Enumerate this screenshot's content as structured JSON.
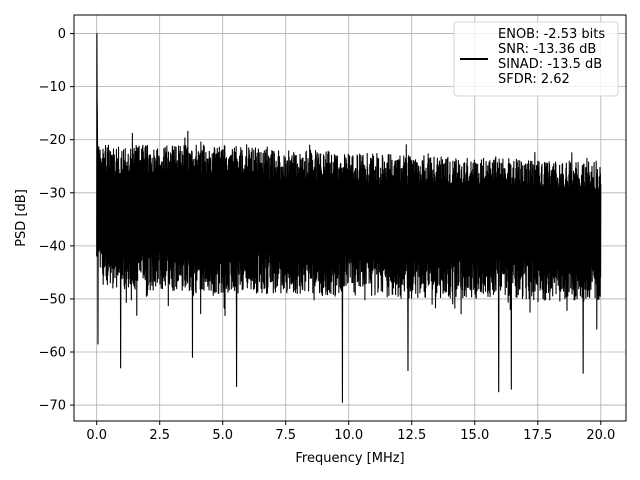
{
  "chart_data": {
    "type": "line",
    "title": "",
    "xlabel": "Frequency [MHz]",
    "ylabel": "PSD [dB]",
    "xlim": [
      -0.9,
      21.0
    ],
    "ylim": [
      -73.0,
      3.5
    ],
    "xticks": [
      0.0,
      2.5,
      5.0,
      7.5,
      10.0,
      12.5,
      15.0,
      17.5,
      20.0
    ],
    "xtick_labels": [
      "0.0",
      "2.5",
      "5.0",
      "7.5",
      "10.0",
      "12.5",
      "15.0",
      "17.5",
      "20.0"
    ],
    "yticks": [
      0,
      -10,
      -20,
      -30,
      -40,
      -50,
      -60,
      -70
    ],
    "ytick_labels": [
      "0",
      "−10",
      "−20",
      "−30",
      "−40",
      "−50",
      "−60",
      "−70"
    ],
    "grid": true,
    "legend_position": "top-right",
    "series": [
      {
        "name": "ENOB: -2.53 bits\nSNR: -13.36 dB\nSINAD: -13.5 dB\nSFDR: 2.62",
        "color": "#000000",
        "x": [
          0.0,
          0.02,
          0.05,
          0.1,
          0.2,
          0.4,
          0.6,
          1.0,
          2.0,
          3.0,
          4.0,
          5.0,
          6.0,
          7.0,
          8.0,
          9.0,
          10.0,
          11.0,
          12.0,
          13.0,
          14.0,
          15.0,
          16.0,
          17.0,
          18.0,
          19.0,
          20.0
        ],
        "y": [
          0.0,
          -14.0,
          -20.0,
          -22.0,
          -24.0,
          -25.0,
          -26.0,
          -27.0,
          -27.5,
          -28.0,
          -28.5,
          -29.0,
          -29.5,
          -30.0,
          -30.0,
          -30.5,
          -30.5,
          -31.0,
          -31.0,
          -31.5,
          -31.5,
          -32.0,
          -32.0,
          -32.0,
          -32.5,
          -32.5,
          -33.0
        ],
        "band_high": [
          0.0,
          -14.0,
          -20.0,
          -21.0,
          -21.0,
          -21.0,
          -21.0,
          -21.0,
          -21.0,
          -21.0,
          -21.0,
          -21.0,
          -21.5,
          -22.0,
          -22.0,
          -22.0,
          -22.5,
          -22.5,
          -23.0,
          -23.0,
          -23.0,
          -23.5,
          -23.5,
          -23.5,
          -24.0,
          -24.0,
          -24.0
        ],
        "band_low": [
          -42.0,
          -44.0,
          -46.0,
          -47.0,
          -47.0,
          -48.0,
          -48.0,
          -48.0,
          -48.5,
          -48.5,
          -49.0,
          -49.0,
          -49.0,
          -49.0,
          -49.0,
          -49.5,
          -49.5,
          -49.5,
          -50.0,
          -50.0,
          -50.0,
          -50.0,
          -50.0,
          -50.0,
          -50.5,
          -50.5,
          -50.5
        ],
        "spikes": [
          {
            "x": 0.05,
            "y": -58.5
          },
          {
            "x": 0.95,
            "y": -63.0
          },
          {
            "x": 5.55,
            "y": -66.5
          },
          {
            "x": 9.75,
            "y": -69.5
          },
          {
            "x": 15.95,
            "y": -67.5
          },
          {
            "x": 16.45,
            "y": -67.0
          },
          {
            "x": 19.3,
            "y": -64.0
          },
          {
            "x": 3.8,
            "y": -61.0
          },
          {
            "x": 12.35,
            "y": -63.5
          }
        ]
      }
    ]
  }
}
